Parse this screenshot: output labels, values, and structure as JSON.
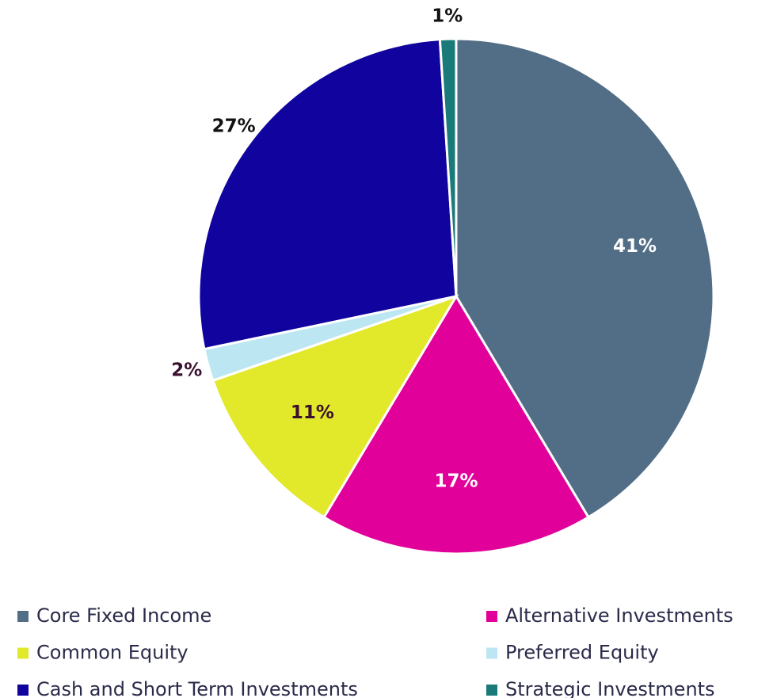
{
  "chart_data": {
    "type": "pie",
    "categories": [
      "Core Fixed Income",
      "Alternative Investments",
      "Common Equity",
      "Preferred Equity",
      "Cash and Short Term Investments",
      "Strategic Investments"
    ],
    "values": [
      41,
      17,
      11,
      2,
      27,
      1
    ],
    "value_labels": [
      "41%",
      "17%",
      "11%",
      "2%",
      "27%",
      "1%"
    ],
    "colors": [
      "#526e86",
      "#e2009a",
      "#e2e82a",
      "#bde6f3",
      "#10039e",
      "#1a7a7a"
    ],
    "label_colors": [
      "#ffffff",
      "#ffffff",
      "#3a1030",
      "#3a1030",
      "#111111",
      "#111111"
    ],
    "label_positions": [
      "inside",
      "inside",
      "inside",
      "outside",
      "outside",
      "outside"
    ],
    "start_angle": 0,
    "direction": "clockwise",
    "legend": "bottom"
  }
}
